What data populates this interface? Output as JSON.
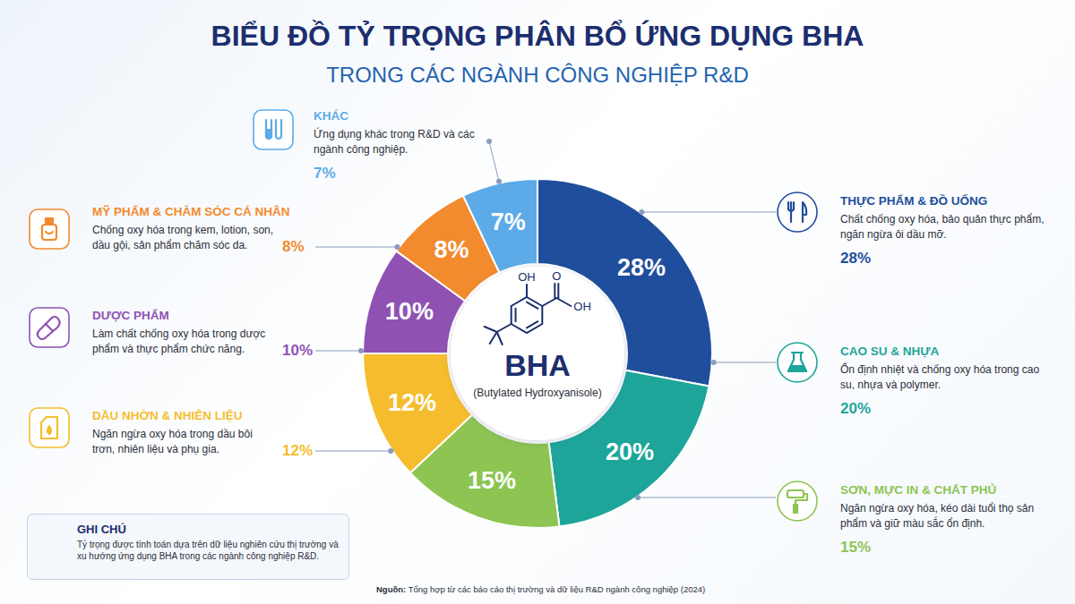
{
  "chart_data": {
    "type": "pie",
    "title": "BIỂU ĐỒ TỶ TRỌNG PHÂN BỔ ỨNG DỤNG BHA",
    "subtitle": "TRONG CÁC NGÀNH CÔNG NGHIỆP R&D",
    "categories": [
      "THỰC PHẨM & ĐỒ UỐNG",
      "CAO SU & NHỰA",
      "SƠN, MỰC IN & CHẤT PHỦ",
      "DẦU NHỜN & NHIÊN LIỆU",
      "DƯỢC PHẨM",
      "MỸ PHẨM & CHĂM SÓC CÁ NHÂN",
      "KHÁC"
    ],
    "descriptions": [
      "Chất chống oxy hóa, bảo quản thực phẩm, ngăn ngừa ôi dầu mỡ.",
      "Ổn định nhiệt và chống oxy hóa trong cao su, nhựa và polymer.",
      "Ngăn ngừa oxy hóa, kéo dài tuổi thọ sản phẩm và giữ màu sắc ổn định.",
      "Ngăn ngừa oxy hóa trong dầu bôi trơn, nhiên liệu và phụ gia.",
      "Làm chất chống oxy hóa trong dược phẩm và thực phẩm chức năng.",
      "Chống oxy hóa trong kem, lotion, son, dầu gội, sản phẩm chăm sóc da.",
      "Ứng dụng khác trong R&D và các ngành công nghiệp."
    ],
    "values": [
      28,
      20,
      15,
      12,
      10,
      8,
      7
    ],
    "value_labels": [
      "28%",
      "20%",
      "15%",
      "12%",
      "10%",
      "8%",
      "7%"
    ],
    "colors": [
      "#1f4e9c",
      "#1ea59a",
      "#8dc452",
      "#f5bd2e",
      "#8f52b3",
      "#f28a2e",
      "#5cabe8"
    ],
    "data_labels": true,
    "center_label": "BHA",
    "center_sublabel": "(Butylated Hydroxyanisole)",
    "structure_labels": [
      "OH",
      "O",
      "OH"
    ],
    "note": {
      "title": "GHI CHÚ",
      "text": "Tỷ trọng được tính toán dựa trên dữ liệu nghiên cứu thị trường và xu hướng ứng dụng BHA trong các ngành công nghiệp R&D."
    },
    "source_label": "Nguồn:",
    "source": "Tổng hợp từ các báo cáo thị trường và dữ liệu R&D ngành công nghiệp (2024)"
  }
}
